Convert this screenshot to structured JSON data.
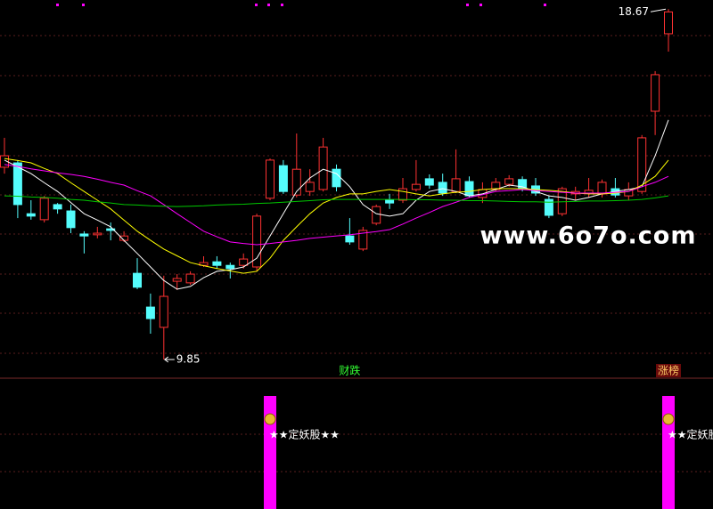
{
  "chart_data": {
    "type": "candlestick",
    "ylim": [
      9.38,
      18.9
    ],
    "up_color": "#ff3232",
    "down_color": "#54fcfc",
    "open": [
      14.69,
      14.8,
      13.52,
      13.37,
      13.75,
      13.59,
      13.01,
      12.99,
      13.14,
      12.85,
      12.02,
      11.17,
      10.66,
      11.82,
      11.78,
      12.22,
      12.31,
      12.22,
      12.22,
      12.18,
      13.91,
      14.73,
      13.99,
      14.08,
      14.13,
      14.64,
      12.96,
      12.63,
      13.28,
      13.86,
      13.86,
      14.13,
      14.4,
      14.31,
      14.08,
      14.33,
      13.93,
      14.13,
      14.26,
      14.38,
      14.22,
      13.88,
      13.52,
      14.02,
      14.04,
      14.02,
      14.15,
      13.97,
      14.08,
      16.1,
      18.05
    ],
    "close": [
      14.98,
      13.75,
      13.46,
      13.91,
      13.64,
      13.17,
      12.96,
      13.03,
      13.1,
      12.96,
      11.67,
      10.88,
      11.44,
      11.89,
      12.0,
      12.29,
      12.22,
      12.14,
      12.38,
      13.46,
      14.87,
      14.08,
      14.64,
      14.31,
      15.2,
      14.2,
      12.81,
      13.1,
      13.7,
      13.79,
      14.15,
      14.26,
      14.24,
      14.04,
      14.4,
      13.97,
      14.13,
      14.31,
      14.4,
      14.15,
      14.04,
      13.48,
      14.15,
      14.08,
      14.11,
      14.31,
      13.99,
      14.13,
      15.43,
      17.02,
      18.6
    ],
    "high": [
      15.43,
      14.87,
      13.86,
      13.97,
      13.79,
      13.75,
      13.08,
      13.19,
      13.3,
      13.08,
      12.4,
      11.51,
      11.96,
      12.0,
      12.07,
      12.45,
      12.45,
      12.29,
      12.52,
      13.52,
      14.91,
      14.87,
      15.54,
      14.64,
      15.43,
      14.76,
      13.41,
      13.19,
      13.75,
      14.02,
      14.42,
      14.87,
      14.51,
      14.53,
      15.14,
      14.46,
      14.31,
      14.42,
      14.49,
      14.46,
      14.42,
      13.97,
      14.2,
      14.2,
      14.42,
      14.38,
      14.42,
      14.31,
      15.5,
      17.11,
      18.67
    ],
    "low": [
      14.53,
      13.41,
      13.37,
      13.3,
      13.52,
      13.03,
      12.52,
      12.9,
      12.85,
      12.81,
      11.62,
      10.5,
      9.85,
      11.6,
      11.73,
      12.18,
      12.14,
      11.89,
      12.14,
      12.07,
      13.86,
      14.02,
      13.93,
      13.97,
      14.08,
      14.08,
      12.74,
      12.58,
      13.23,
      13.64,
      13.79,
      14.08,
      14.15,
      13.97,
      14.04,
      13.93,
      13.79,
      14.08,
      14.2,
      14.08,
      13.97,
      13.41,
      13.46,
      13.86,
      13.93,
      13.93,
      13.93,
      13.86,
      14.02,
      15.5,
      17.6
    ],
    "ma": [
      {
        "color": "#ffffff",
        "values": [
          14.87,
          14.7,
          14.53,
          14.3,
          14.08,
          13.8,
          13.52,
          13.36,
          13.19,
          12.85,
          12.52,
          12.18,
          11.84,
          11.62,
          11.69,
          11.91,
          12.07,
          12.11,
          12.18,
          12.4,
          12.96,
          13.52,
          14.08,
          14.42,
          14.64,
          14.53,
          14.2,
          13.75,
          13.52,
          13.46,
          13.52,
          13.86,
          14.08,
          14.15,
          14.08,
          13.97,
          14.02,
          14.13,
          14.24,
          14.2,
          14.08,
          13.97,
          13.93,
          13.86,
          13.93,
          14.02,
          14.08,
          14.13,
          14.2,
          14.98,
          15.88
        ]
      },
      {
        "color": "#ffff00",
        "values": [
          14.91,
          14.86,
          14.8,
          14.66,
          14.53,
          14.3,
          14.08,
          13.86,
          13.64,
          13.36,
          13.08,
          12.85,
          12.63,
          12.46,
          12.29,
          12.21,
          12.14,
          12.08,
          12.02,
          12.07,
          12.4,
          12.85,
          13.19,
          13.52,
          13.79,
          13.93,
          14.02,
          14.02,
          14.08,
          14.13,
          14.08,
          14.02,
          13.97,
          14.02,
          14.06,
          14.08,
          14.13,
          14.15,
          14.15,
          14.15,
          14.13,
          14.11,
          14.08,
          14.04,
          14.02,
          14.02,
          14.04,
          14.08,
          14.24,
          14.46,
          14.87
        ]
      },
      {
        "color": "#ff00ff",
        "values": [
          14.76,
          14.71,
          14.65,
          14.6,
          14.55,
          14.51,
          14.46,
          14.39,
          14.31,
          14.24,
          14.1,
          13.97,
          13.75,
          13.52,
          13.3,
          13.08,
          12.94,
          12.81,
          12.77,
          12.74,
          12.77,
          12.81,
          12.85,
          12.9,
          12.93,
          12.96,
          12.99,
          13.03,
          13.07,
          13.12,
          13.26,
          13.41,
          13.55,
          13.7,
          13.81,
          13.93,
          14.0,
          14.08,
          14.1,
          14.13,
          14.1,
          14.08,
          14.06,
          14.04,
          14.04,
          14.04,
          14.06,
          14.08,
          14.2,
          14.31,
          14.46
        ]
      },
      {
        "color": "#00c800",
        "values": [
          13.97,
          13.96,
          13.94,
          13.93,
          13.91,
          13.88,
          13.86,
          13.82,
          13.79,
          13.75,
          13.74,
          13.72,
          13.71,
          13.7,
          13.71,
          13.72,
          13.74,
          13.75,
          13.76,
          13.78,
          13.79,
          13.81,
          13.83,
          13.85,
          13.87,
          13.88,
          13.88,
          13.88,
          13.88,
          13.88,
          13.88,
          13.87,
          13.87,
          13.86,
          13.86,
          13.85,
          13.85,
          13.84,
          13.83,
          13.82,
          13.82,
          13.81,
          13.82,
          13.83,
          13.84,
          13.84,
          13.85,
          13.86,
          13.88,
          13.92,
          13.97
        ]
      }
    ],
    "annotations": [
      {
        "text": "财跌",
        "at": 26,
        "color": "#33ff33"
      },
      {
        "text": "涨榜",
        "at": 50,
        "color": "#ffcc66"
      }
    ],
    "watermark": "www.6o7o.com",
    "signal": {
      "name": "★★定妖股★★",
      "color": "#ff00ff",
      "ylim": [
        0,
        1
      ],
      "values": [
        0,
        0,
        0,
        0,
        0,
        0,
        0,
        0,
        0,
        0,
        0,
        0,
        0,
        0,
        0,
        0,
        0,
        0,
        0,
        0,
        1,
        0,
        0,
        0,
        0,
        0,
        0,
        0,
        0,
        0,
        0,
        0,
        0,
        0,
        0,
        0,
        0,
        0,
        0,
        0,
        0,
        0,
        0,
        0,
        0,
        0,
        0,
        0,
        0,
        0,
        1
      ]
    }
  }
}
